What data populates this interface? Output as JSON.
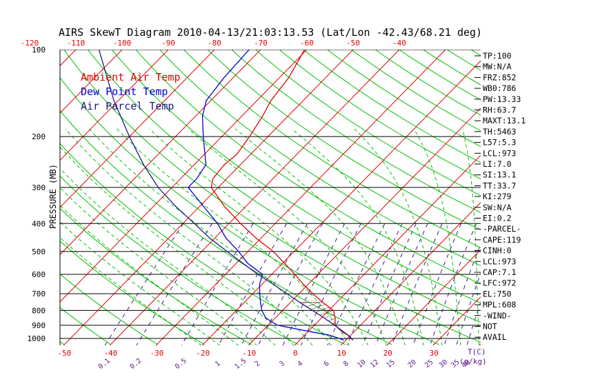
{
  "chart_data": {
    "type": "line",
    "title": "AIRS SkewT Diagram 2010-04-13/21:03:13.53 (Lat/Lon -42.43/68.21 deg)",
    "ylabel": "PRESSURE (MB)",
    "xlabel_bottom_unit": "T(C)",
    "xlabel_mixing_unit": "(g/kg)",
    "pressure_ticks": [
      100,
      200,
      300,
      400,
      500,
      600,
      700,
      800,
      900,
      1000
    ],
    "ylim": [
      100,
      1050
    ],
    "y_scale": "log",
    "bottom_temp_ticks": [
      "-50",
      "-40",
      "-30",
      "-20",
      "-10",
      "0",
      "10",
      "20",
      "30"
    ],
    "top_temp_ticks": [
      "-120",
      "-110",
      "-100",
      "-90",
      "-80",
      "-70",
      "-60",
      "-50",
      "-40"
    ],
    "mixing_ratio_ticks": [
      "0.1",
      "0.2",
      "0.5",
      "1",
      "1.5",
      "2",
      "3",
      "4",
      "6",
      "8",
      "10",
      "12",
      "15",
      "20",
      "25",
      "30",
      "35",
      "40"
    ],
    "legend": [
      {
        "label": "Ambient Air Temp",
        "color": "#e00000"
      },
      {
        "label": "Dew Point Temp",
        "color": "#0000d0"
      },
      {
        "label": "Air Parcel Temp",
        "color": "#1a1a80"
      }
    ],
    "series": [
      {
        "name": "Ambient Air Temp",
        "color": "#e00000",
        "points": [
          [
            1013,
            11.5
          ],
          [
            975,
            9.5
          ],
          [
            950,
            7.5
          ],
          [
            900,
            4.5
          ],
          [
            850,
            3.0
          ],
          [
            800,
            1.0
          ],
          [
            750,
            -3.0
          ],
          [
            700,
            -7.0
          ],
          [
            650,
            -11.0
          ],
          [
            600,
            -15.0
          ],
          [
            550,
            -19.5
          ],
          [
            500,
            -24.5
          ],
          [
            450,
            -31.0
          ],
          [
            400,
            -37.5
          ],
          [
            350,
            -44.5
          ],
          [
            300,
            -51.5
          ],
          [
            280,
            -53.0
          ],
          [
            250,
            -53.5
          ],
          [
            230,
            -53.0
          ],
          [
            200,
            -54.0
          ],
          [
            170,
            -55.5
          ],
          [
            150,
            -57.0
          ],
          [
            125,
            -58.0
          ],
          [
            100,
            -60.5
          ]
        ]
      },
      {
        "name": "Dew Point Temp",
        "color": "#0000d0",
        "points": [
          [
            1013,
            9.5
          ],
          [
            975,
            5.5
          ],
          [
            950,
            1.0
          ],
          [
            900,
            -8.0
          ],
          [
            850,
            -12.0
          ],
          [
            800,
            -14.5
          ],
          [
            750,
            -16.5
          ],
          [
            700,
            -18.5
          ],
          [
            650,
            -20.5
          ],
          [
            600,
            -22.0
          ],
          [
            550,
            -27.5
          ],
          [
            500,
            -32.0
          ],
          [
            450,
            -37.5
          ],
          [
            400,
            -42.5
          ],
          [
            350,
            -49.0
          ],
          [
            300,
            -56.5
          ],
          [
            280,
            -56.5
          ],
          [
            250,
            -57.5
          ],
          [
            200,
            -64.0
          ],
          [
            170,
            -68.5
          ],
          [
            150,
            -71.0
          ],
          [
            125,
            -72.0
          ],
          [
            100,
            -72.5
          ]
        ]
      },
      {
        "name": "Air Parcel Temp",
        "color": "#1a1a80",
        "points": [
          [
            1013,
            11.5
          ],
          [
            973,
            9.3
          ],
          [
            950,
            7.8
          ],
          [
            900,
            4.4
          ],
          [
            850,
            0.6
          ],
          [
            800,
            -3.5
          ],
          [
            750,
            -8.0
          ],
          [
            700,
            -12.6
          ],
          [
            650,
            -17.5
          ],
          [
            600,
            -23.0
          ],
          [
            550,
            -28.5
          ],
          [
            500,
            -34.5
          ],
          [
            450,
            -41.0
          ],
          [
            400,
            -47.5
          ],
          [
            350,
            -55.0
          ],
          [
            300,
            -63.0
          ],
          [
            250,
            -71.0
          ],
          [
            200,
            -80.0
          ],
          [
            150,
            -91.0
          ],
          [
            100,
            -105.0
          ]
        ]
      }
    ]
  },
  "indices": [
    "TP:100",
    "MW:N/A",
    "FRZ:852",
    "WB0:786",
    "PW:13.33",
    "RH:63.7",
    "MAXT:13.1",
    "TH:5463",
    "L57:5.3",
    "LCL:973",
    "LI:7.0",
    "SI:13.1",
    "TT:33.7",
    "KI:279",
    "SW:N/A",
    "EI:0.2",
    "-PARCEL-",
    "CAPE:119",
    "CINH:0",
    "LCL:973",
    "CAP:7.1",
    "LFC:972",
    "EL:750",
    "MPL:608",
    "-WIND-",
    "NOT",
    "AVAIL"
  ],
  "colors": {
    "isotherm": "#e00000",
    "dry_adiabat": "#00c000",
    "moist_adiabat": "#00c000",
    "mixing_ratio": "#3a1a8a",
    "isobar": "#000000",
    "axis_text": "#000000",
    "tick_text_red": "#e00000",
    "tick_text_purple": "#5a1a8a"
  }
}
